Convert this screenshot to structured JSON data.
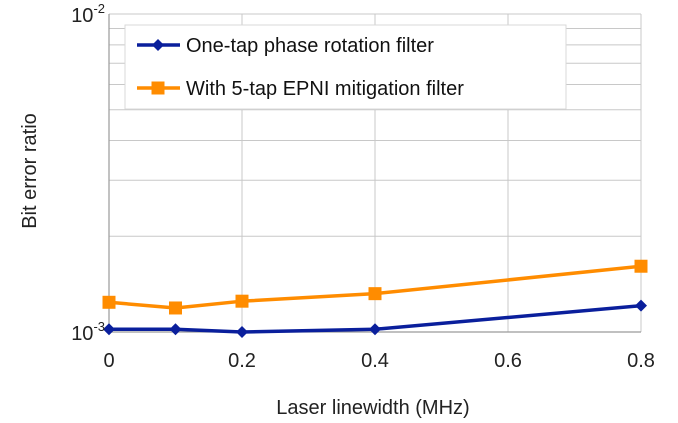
{
  "chart_data": {
    "type": "line",
    "title": "",
    "xlabel": "Laser linewidth (MHz)",
    "ylabel": "Bit error ratio",
    "x_ticks": [
      "0",
      "0.2",
      "0.4",
      "0.6",
      "0.8"
    ],
    "xlim": [
      0,
      0.8
    ],
    "y_scale": "log",
    "ylim": [
      0.001,
      0.01
    ],
    "y_ticks": [
      {
        "base": "10",
        "exp": "-3",
        "value": 0.001
      },
      {
        "base": "10",
        "exp": "-2",
        "value": 0.01
      }
    ],
    "grid": true,
    "legend_position": "top-left",
    "series": [
      {
        "name": "One-tap phase rotation filter",
        "color": "#0a1f9c",
        "marker": "diamond",
        "x": [
          0,
          0.1,
          0.2,
          0.4,
          0.8
        ],
        "y": [
          0.00102,
          0.00102,
          0.001,
          0.00102,
          0.00121
        ]
      },
      {
        "name": "With 5-tap EPNI mitigation filter",
        "color": "#ff8c00",
        "marker": "square",
        "x": [
          0,
          0.1,
          0.2,
          0.4,
          0.8
        ],
        "y": [
          0.00124,
          0.00119,
          0.00125,
          0.00132,
          0.00161
        ]
      }
    ]
  }
}
